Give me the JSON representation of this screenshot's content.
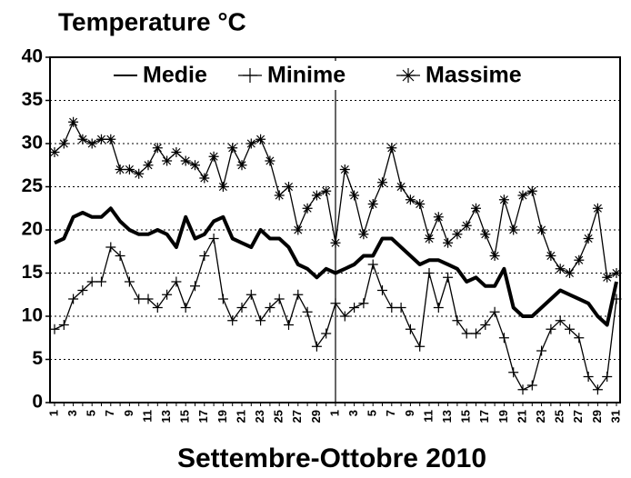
{
  "chart_data": {
    "type": "line",
    "title": "Temperature °C",
    "x_label": "Settembre-Ottobre 2010",
    "categories": [
      "1",
      null,
      "3",
      null,
      "5",
      null,
      "7",
      null,
      "9",
      null,
      "11",
      null,
      "13",
      null,
      "15",
      null,
      "17",
      null,
      "19",
      null,
      "21",
      null,
      "23",
      null,
      "25",
      null,
      "27",
      null,
      "29",
      null,
      "1",
      null,
      "3",
      null,
      "5",
      null,
      "7",
      null,
      "9",
      null,
      "11",
      null,
      "13",
      null,
      "15",
      null,
      "17",
      null,
      "19",
      null,
      "21",
      null,
      "23",
      null,
      "25",
      null,
      "27",
      null,
      "29",
      null,
      "31"
    ],
    "ylim": [
      0,
      40
    ],
    "yticks": [
      0,
      5,
      10,
      15,
      20,
      25,
      30,
      35,
      40
    ],
    "grid": true,
    "legend": "top",
    "series": [
      {
        "name": "Medie",
        "color": "#000000",
        "marker": "none",
        "line_width": 4,
        "values": [
          18.5,
          19,
          21.5,
          22,
          21.5,
          21.5,
          22.5,
          21,
          20,
          19.5,
          19.5,
          20,
          19.5,
          18,
          21.5,
          19,
          19.5,
          21,
          21.5,
          19,
          18.5,
          18,
          20,
          19,
          19,
          18,
          16,
          15.5,
          14.5,
          15.5,
          15,
          15.5,
          16,
          17,
          17,
          19,
          19,
          18,
          17,
          16,
          16.5,
          16.5,
          16,
          15.5,
          14,
          14.5,
          13.5,
          13.5,
          15.5,
          11,
          10,
          10,
          11,
          12,
          13,
          12.5,
          12,
          11.5,
          10,
          9,
          14
        ]
      },
      {
        "name": "Minime",
        "color": "#000000",
        "marker": "plus",
        "line_width": 1.3,
        "values": [
          8.5,
          9,
          12,
          13,
          14,
          14,
          18,
          17,
          14,
          12,
          12,
          11,
          12.5,
          14,
          11,
          13.5,
          17,
          19,
          12,
          9.5,
          11,
          12.5,
          9.5,
          11,
          12,
          9,
          12.5,
          10.5,
          6.5,
          8,
          11.5,
          10,
          11,
          11.5,
          16,
          13,
          11,
          11,
          8.5,
          6.5,
          15,
          11,
          14.5,
          9.5,
          8,
          8,
          9,
          10.5,
          7.5,
          3.5,
          1.5,
          2,
          6,
          8.5,
          9.5,
          8.5,
          7.5,
          3,
          1.5,
          3,
          12
        ]
      },
      {
        "name": "Massime",
        "color": "#000000",
        "marker": "star",
        "line_width": 1.3,
        "values": [
          29,
          30,
          32.5,
          30.5,
          30,
          30.5,
          30.5,
          27,
          27,
          26.5,
          27.5,
          29.5,
          28,
          29,
          28,
          27.5,
          26,
          28.5,
          25,
          29.5,
          27.5,
          30,
          30.5,
          28,
          24,
          25,
          20,
          22.5,
          24,
          24.5,
          18.5,
          27,
          24,
          19.5,
          23,
          25.5,
          29.5,
          25,
          23.5,
          23,
          19,
          21.5,
          18.5,
          19.5,
          20.5,
          22.5,
          19.5,
          17,
          23.5,
          20,
          24,
          24.5,
          20,
          17,
          15.5,
          15,
          16.5,
          19,
          22.5,
          14.5,
          15
        ]
      }
    ]
  }
}
